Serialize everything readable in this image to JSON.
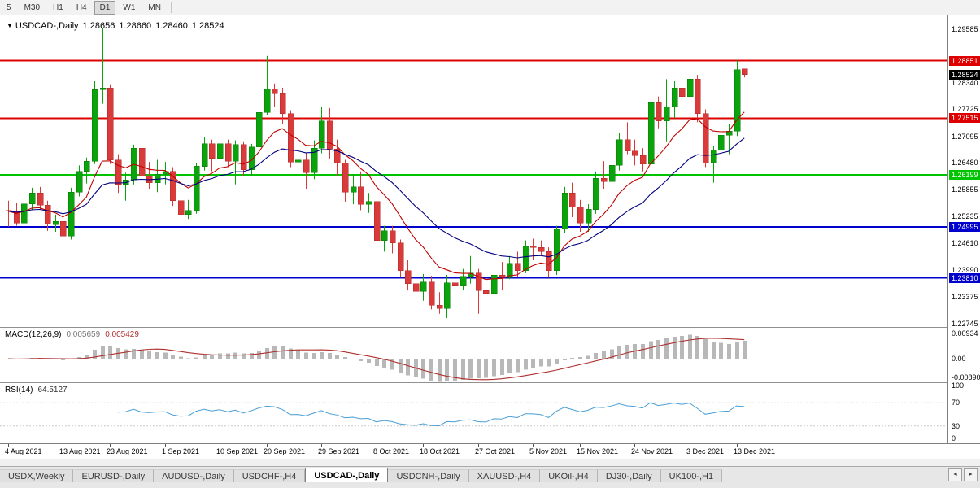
{
  "toolbar": {
    "timeframes": [
      {
        "label": "5",
        "active": false
      },
      {
        "label": "M30",
        "active": false
      },
      {
        "label": "H1",
        "active": false
      },
      {
        "label": "H4",
        "active": false
      },
      {
        "label": "D1",
        "active": true
      },
      {
        "label": "W1",
        "active": false
      },
      {
        "label": "MN",
        "active": false
      }
    ]
  },
  "chart": {
    "title": {
      "menu_icon": "▼",
      "symbol": "USDCAD-,Daily",
      "open": "1.28656",
      "high": "1.28660",
      "low": "1.28460",
      "close": "1.28524"
    },
    "price_axis_labels": [
      "1.29585",
      "1.28340",
      "1.27725",
      "1.27095",
      "1.26480",
      "1.25855",
      "1.25235",
      "1.24610",
      "1.23990",
      "1.23375",
      "1.22745"
    ],
    "current_price_badge": {
      "text": "1.28524",
      "price": 1.28524,
      "bg": "#000000"
    }
  },
  "chart_data": {
    "type": "candlestick",
    "symbol": "USDCAD",
    "timeframe": "Daily",
    "y_range": [
      1.2267,
      1.2988
    ],
    "x_labels": [
      {
        "text": "4 Aug 2021",
        "index": 0
      },
      {
        "text": "13 Aug 2021",
        "index": 7
      },
      {
        "text": "23 Aug 2021",
        "index": 13
      },
      {
        "text": "1 Sep 2021",
        "index": 20
      },
      {
        "text": "10 Sep 2021",
        "index": 27
      },
      {
        "text": "20 Sep 2021",
        "index": 33
      },
      {
        "text": "29 Sep 2021",
        "index": 40
      },
      {
        "text": "8 Oct 2021",
        "index": 47
      },
      {
        "text": "18 Oct 2021",
        "index": 53
      },
      {
        "text": "27 Oct 2021",
        "index": 60
      },
      {
        "text": "5 Nov 2021",
        "index": 67
      },
      {
        "text": "15 Nov 2021",
        "index": 73
      },
      {
        "text": "24 Nov 2021",
        "index": 80
      },
      {
        "text": "3 Dec 2021",
        "index": 87
      },
      {
        "text": "13 Dec 2021",
        "index": 93
      }
    ],
    "candles": [
      [
        1.2538,
        1.256,
        1.25,
        1.2536
      ],
      [
        1.2536,
        1.2556,
        1.2502,
        1.2508
      ],
      [
        1.2508,
        1.256,
        1.247,
        1.2553
      ],
      [
        1.2553,
        1.259,
        1.2538,
        1.2578
      ],
      [
        1.2578,
        1.2592,
        1.254,
        1.255
      ],
      [
        1.255,
        1.256,
        1.249,
        1.2505
      ],
      [
        1.2505,
        1.2528,
        1.2488,
        1.2512
      ],
      [
        1.2512,
        1.2522,
        1.2455,
        1.2478
      ],
      [
        1.2478,
        1.259,
        1.247,
        1.258
      ],
      [
        1.258,
        1.2642,
        1.257,
        1.2628
      ],
      [
        1.2628,
        1.266,
        1.26,
        1.2652
      ],
      [
        1.2652,
        1.2838,
        1.2645,
        1.2818
      ],
      [
        1.2818,
        1.296,
        1.2785,
        1.2822
      ],
      [
        1.2822,
        1.283,
        1.2645,
        1.2655
      ],
      [
        1.2655,
        1.2668,
        1.2578,
        1.2598
      ],
      [
        1.2598,
        1.2625,
        1.256,
        1.2608
      ],
      [
        1.2608,
        1.269,
        1.2598,
        1.2682
      ],
      [
        1.2682,
        1.2708,
        1.26,
        1.2618
      ],
      [
        1.2618,
        1.265,
        1.2588,
        1.2602
      ],
      [
        1.2602,
        1.2655,
        1.258,
        1.2622
      ],
      [
        1.2622,
        1.265,
        1.2598,
        1.2628
      ],
      [
        1.2628,
        1.2638,
        1.2548,
        1.256
      ],
      [
        1.256,
        1.2588,
        1.2492,
        1.2528
      ],
      [
        1.2528,
        1.2562,
        1.2518,
        1.2538
      ],
      [
        1.2538,
        1.2648,
        1.253,
        1.264
      ],
      [
        1.264,
        1.2708,
        1.263,
        1.2692
      ],
      [
        1.2692,
        1.2702,
        1.2628,
        1.2658
      ],
      [
        1.2658,
        1.2712,
        1.2638,
        1.2692
      ],
      [
        1.2692,
        1.2702,
        1.2638,
        1.2652
      ],
      [
        1.2652,
        1.27,
        1.2598,
        1.269
      ],
      [
        1.269,
        1.2698,
        1.2618,
        1.2632
      ],
      [
        1.2632,
        1.2692,
        1.2618,
        1.2685
      ],
      [
        1.2685,
        1.2772,
        1.266,
        1.2765
      ],
      [
        1.2765,
        1.2896,
        1.2758,
        1.282
      ],
      [
        1.282,
        1.2832,
        1.2778,
        1.281
      ],
      [
        1.281,
        1.2822,
        1.2738,
        1.2762
      ],
      [
        1.2762,
        1.277,
        1.2638,
        1.265
      ],
      [
        1.265,
        1.2682,
        1.2608,
        1.2655
      ],
      [
        1.2655,
        1.2672,
        1.2588,
        1.2625
      ],
      [
        1.2625,
        1.27,
        1.261,
        1.2682
      ],
      [
        1.2682,
        1.2778,
        1.267,
        1.2745
      ],
      [
        1.2745,
        1.2775,
        1.2658,
        1.268
      ],
      [
        1.268,
        1.2702,
        1.2618,
        1.2648
      ],
      [
        1.2648,
        1.2655,
        1.2558,
        1.258
      ],
      [
        1.258,
        1.2622,
        1.2552,
        1.2592
      ],
      [
        1.2592,
        1.2628,
        1.2538,
        1.2552
      ],
      [
        1.2552,
        1.2578,
        1.2532,
        1.2558
      ],
      [
        1.2558,
        1.2568,
        1.2442,
        1.2468
      ],
      [
        1.2468,
        1.2502,
        1.2442,
        1.249
      ],
      [
        1.249,
        1.2502,
        1.2438,
        1.2462
      ],
      [
        1.2462,
        1.247,
        1.2382,
        1.2398
      ],
      [
        1.2398,
        1.2422,
        1.2352,
        1.2368
      ],
      [
        1.2368,
        1.2392,
        1.2338,
        1.235
      ],
      [
        1.235,
        1.239,
        1.2328,
        1.2372
      ],
      [
        1.2372,
        1.2386,
        1.2308,
        1.2318
      ],
      [
        1.2318,
        1.2348,
        1.2298,
        1.231
      ],
      [
        1.231,
        1.2388,
        1.2288,
        1.237
      ],
      [
        1.237,
        1.2392,
        1.2322,
        1.2362
      ],
      [
        1.2362,
        1.2402,
        1.2352,
        1.2385
      ],
      [
        1.2385,
        1.2432,
        1.2368,
        1.2392
      ],
      [
        1.2392,
        1.2402,
        1.2298,
        1.2352
      ],
      [
        1.2352,
        1.2402,
        1.233,
        1.2345
      ],
      [
        1.2345,
        1.2402,
        1.2338,
        1.2388
      ],
      [
        1.2388,
        1.2418,
        1.2352,
        1.2382
      ],
      [
        1.2382,
        1.2432,
        1.2378,
        1.2415
      ],
      [
        1.2415,
        1.2442,
        1.2382,
        1.2398
      ],
      [
        1.2398,
        1.2468,
        1.2392,
        1.2455
      ],
      [
        1.2455,
        1.2472,
        1.2422,
        1.2452
      ],
      [
        1.2452,
        1.2468,
        1.2432,
        1.2442
      ],
      [
        1.2442,
        1.2452,
        1.2382,
        1.2398
      ],
      [
        1.2398,
        1.2502,
        1.2388,
        1.2495
      ],
      [
        1.2495,
        1.2592,
        1.2485,
        1.2578
      ],
      [
        1.2578,
        1.2602,
        1.2522,
        1.2545
      ],
      [
        1.2545,
        1.2562,
        1.2488,
        1.2508
      ],
      [
        1.2508,
        1.2552,
        1.2488,
        1.254
      ],
      [
        1.254,
        1.2628,
        1.253,
        1.2612
      ],
      [
        1.2612,
        1.2652,
        1.2588,
        1.2605
      ],
      [
        1.2605,
        1.2668,
        1.2588,
        1.2642
      ],
      [
        1.2642,
        1.2718,
        1.263,
        1.2702
      ],
      [
        1.2702,
        1.2742,
        1.2668,
        1.2675
      ],
      [
        1.2675,
        1.2702,
        1.2642,
        1.2665
      ],
      [
        1.2665,
        1.2682,
        1.2628,
        1.2645
      ],
      [
        1.2645,
        1.2802,
        1.2638,
        1.2788
      ],
      [
        1.2788,
        1.2802,
        1.2728,
        1.2745
      ],
      [
        1.2745,
        1.2842,
        1.2698,
        1.2778
      ],
      [
        1.2778,
        1.2838,
        1.2752,
        1.2822
      ],
      [
        1.2822,
        1.2845,
        1.2748,
        1.2802
      ],
      [
        1.2802,
        1.2858,
        1.2782,
        1.2842
      ],
      [
        1.2842,
        1.2852,
        1.2742,
        1.2762
      ],
      [
        1.2762,
        1.2772,
        1.2638,
        1.2648
      ],
      [
        1.2648,
        1.2688,
        1.2602,
        1.2678
      ],
      [
        1.2678,
        1.2722,
        1.2658,
        1.2712
      ],
      [
        1.2712,
        1.2738,
        1.2668,
        1.2722
      ],
      [
        1.2722,
        1.2886,
        1.271,
        1.2864
      ],
      [
        1.28656,
        1.2866,
        1.2846,
        1.28524
      ]
    ],
    "moving_averages": [
      {
        "name": "fast-ma",
        "period": 10,
        "color": "#c00000"
      },
      {
        "name": "slow-ma",
        "period": 22,
        "color": "#000080"
      }
    ],
    "horizontal_lines": [
      {
        "label": "1.28851",
        "price": 1.28851,
        "color": "#dd0000",
        "role": "resistance"
      },
      {
        "label": "1.27515",
        "price": 1.27515,
        "color": "#dd0000",
        "role": "resistance"
      },
      {
        "label": "1.26199",
        "price": 1.26199,
        "color": "#00c400",
        "role": "pivot"
      },
      {
        "label": "1.24995",
        "price": 1.24995,
        "color": "#0000cc",
        "role": "support"
      },
      {
        "label": "1.23810",
        "price": 1.2381,
        "color": "#0000cc",
        "role": "support"
      }
    ],
    "indicators": {
      "macd": {
        "label": "MACD(12,26,9)",
        "fast": 12,
        "slow": 26,
        "signal": 9,
        "main_value": "0.005659",
        "signal_value": "0.005429",
        "axis_max": "0.00934",
        "axis_zero": "0.00",
        "axis_min": "-0.00890"
      },
      "rsi": {
        "label": "RSI(14)",
        "period": 14,
        "value": "64.5127",
        "axis_labels": [
          "100",
          "70",
          "30",
          "0"
        ],
        "guide_levels": [
          70,
          30
        ]
      }
    }
  },
  "colors": {
    "candle_up": "#0ba30b",
    "candle_down": "#d93a3a",
    "candle_up_border": "#087a08",
    "candle_down_border": "#b02828",
    "macd_hist": "#b8b8b8",
    "macd_signal": "#b03030",
    "rsi_line": "#4a9ed6"
  },
  "tabs": {
    "items": [
      {
        "label": "USDX,Weekly",
        "active": false
      },
      {
        "label": "EURUSD-,Daily",
        "active": false
      },
      {
        "label": "AUDUSD-,Daily",
        "active": false
      },
      {
        "label": "USDCHF-,H4",
        "active": false
      },
      {
        "label": "USDCAD-,Daily",
        "active": true
      },
      {
        "label": "USDCNH-,Daily",
        "active": false
      },
      {
        "label": "XAUUSD-,H4",
        "active": false
      },
      {
        "label": "UKOil-,H4",
        "active": false
      },
      {
        "label": "DJ30-,Daily",
        "active": false
      },
      {
        "label": "UK100-,H1",
        "active": false
      }
    ],
    "scroll_left_icon": "◄",
    "scroll_right_icon": "►"
  }
}
